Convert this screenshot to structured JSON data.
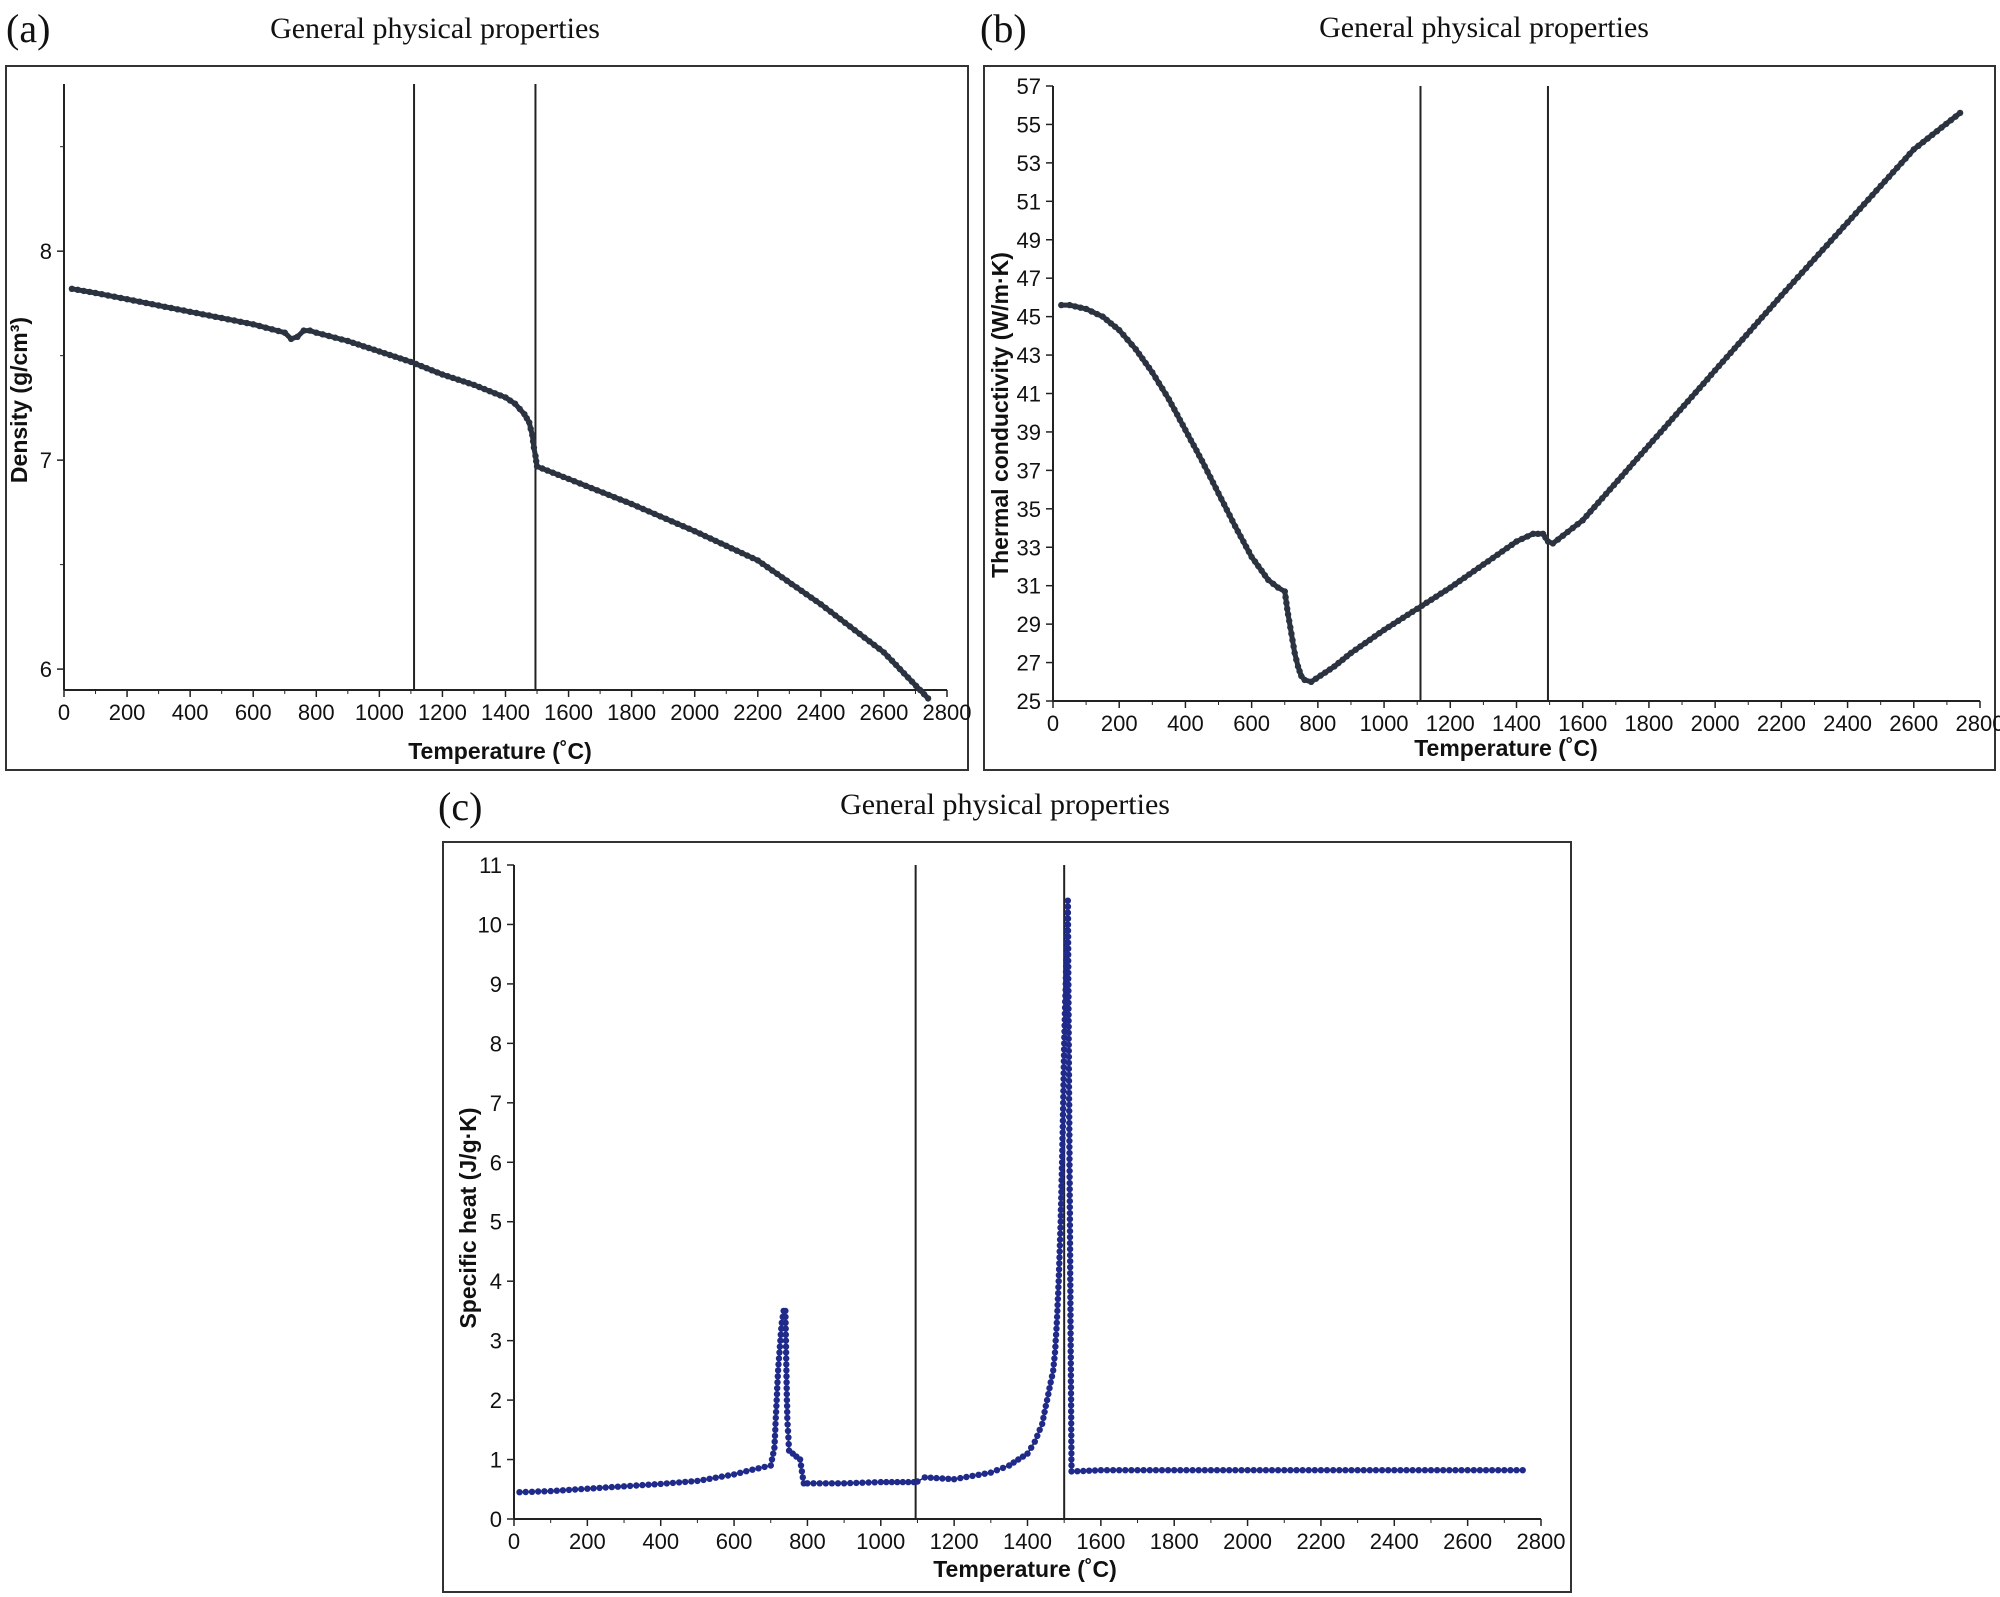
{
  "chart_data": [
    {
      "panel": "(a)",
      "type": "scatter",
      "title": "General physical properties",
      "xlabel": "Temperature (˚C)",
      "ylabel": "Density (g/cm³)",
      "xlim": [
        0,
        2800
      ],
      "ylim": [
        5.9,
        8.8
      ],
      "xticks": [
        0,
        200,
        400,
        600,
        800,
        1000,
        1200,
        1400,
        1600,
        1800,
        2000,
        2200,
        2400,
        2600,
        2800
      ],
      "yticks": [
        6,
        7,
        8
      ],
      "minor_yticks": [
        6.5,
        7.5,
        8.5
      ],
      "vlines": [
        1110,
        1495
      ],
      "grid": false,
      "color": "#2b3340",
      "series": [
        {
          "x": [
            25,
            100,
            200,
            300,
            400,
            500,
            600,
            700,
            720,
            740,
            760,
            780,
            800,
            900,
            1000,
            1100,
            1200,
            1300,
            1350,
            1400,
            1430,
            1460,
            1475,
            1485,
            1490,
            1495,
            1500,
            1600,
            1800,
            2000,
            2200,
            2400,
            2600,
            2740
          ],
          "y": [
            7.82,
            7.8,
            7.77,
            7.74,
            7.71,
            7.68,
            7.65,
            7.61,
            7.58,
            7.59,
            7.62,
            7.62,
            7.61,
            7.57,
            7.52,
            7.47,
            7.41,
            7.36,
            7.33,
            7.3,
            7.27,
            7.22,
            7.18,
            7.12,
            7.06,
            7.02,
            6.97,
            6.91,
            6.79,
            6.66,
            6.52,
            6.31,
            6.08,
            5.86
          ]
        }
      ]
    },
    {
      "panel": "(b)",
      "type": "scatter",
      "title": "General physical properties",
      "xlabel": "Temperature (˚C)",
      "ylabel": "Thermal conductivity (W/m·K)",
      "xlim": [
        0,
        2800
      ],
      "ylim": [
        25,
        57
      ],
      "xticks": [
        0,
        200,
        400,
        600,
        800,
        1000,
        1200,
        1400,
        1600,
        1800,
        2000,
        2200,
        2400,
        2600,
        2800
      ],
      "yticks": [
        25,
        27,
        29,
        31,
        33,
        35,
        37,
        39,
        41,
        43,
        45,
        47,
        49,
        51,
        53,
        55,
        57
      ],
      "vlines": [
        1110,
        1495
      ],
      "grid": false,
      "color": "#2b3340",
      "series": [
        {
          "x": [
            25,
            50,
            100,
            150,
            200,
            250,
            300,
            350,
            400,
            450,
            500,
            550,
            600,
            650,
            680,
            700,
            710,
            720,
            730,
            740,
            750,
            760,
            780,
            850,
            900,
            1000,
            1100,
            1200,
            1300,
            1400,
            1450,
            1480,
            1495,
            1510,
            1600,
            1800,
            2000,
            2200,
            2400,
            2600,
            2740
          ],
          "y": [
            45.6,
            45.6,
            45.4,
            45.0,
            44.3,
            43.3,
            42.1,
            40.7,
            39.1,
            37.5,
            35.8,
            34.1,
            32.5,
            31.3,
            30.9,
            30.7,
            29.5,
            28.5,
            27.5,
            26.8,
            26.3,
            26.1,
            26.0,
            26.8,
            27.5,
            28.7,
            29.8,
            30.9,
            32.1,
            33.3,
            33.7,
            33.7,
            33.3,
            33.2,
            34.4,
            38.3,
            42.2,
            46.1,
            49.9,
            53.7,
            55.6
          ]
        }
      ]
    },
    {
      "panel": "(c)",
      "type": "scatter",
      "title": "General physical properties",
      "xlabel": "Temperature (˚C)",
      "ylabel": "Specific heat (J/g·K)",
      "xlim": [
        0,
        2800
      ],
      "ylim": [
        0,
        11
      ],
      "xticks": [
        0,
        200,
        400,
        600,
        800,
        1000,
        1200,
        1400,
        1600,
        1800,
        2000,
        2200,
        2400,
        2600,
        2800
      ],
      "yticks": [
        0,
        1,
        2,
        3,
        4,
        5,
        6,
        7,
        8,
        9,
        10,
        11
      ],
      "vlines": [
        1095,
        1500
      ],
      "grid": false,
      "color": "#1f2a8a",
      "series": [
        {
          "x": [
            15,
            100,
            200,
            300,
            400,
            500,
            600,
            650,
            700,
            710,
            720,
            725,
            730,
            735,
            740,
            745,
            750,
            760,
            770,
            780,
            790,
            800,
            900,
            1000,
            1090,
            1100,
            1120,
            1200,
            1300,
            1350,
            1400,
            1420,
            1440,
            1450,
            1460,
            1470,
            1475,
            1480,
            1485,
            1490,
            1495,
            1500,
            1510,
            1520,
            1600,
            1800,
            2000,
            2200,
            2400,
            2600,
            2750
          ],
          "y": [
            0.45,
            0.47,
            0.51,
            0.55,
            0.59,
            0.64,
            0.75,
            0.83,
            0.9,
            1.2,
            2.5,
            2.9,
            3.3,
            3.5,
            3.5,
            1.7,
            1.15,
            1.1,
            1.05,
            1.0,
            0.6,
            0.6,
            0.6,
            0.62,
            0.62,
            0.63,
            0.7,
            0.67,
            0.78,
            0.9,
            1.1,
            1.3,
            1.6,
            1.9,
            2.2,
            2.5,
            2.8,
            3.3,
            4.0,
            4.9,
            6.2,
            8.0,
            10.4,
            0.8,
            0.82,
            0.82,
            0.82,
            0.82,
            0.82,
            0.82,
            0.82
          ]
        }
      ]
    }
  ]
}
